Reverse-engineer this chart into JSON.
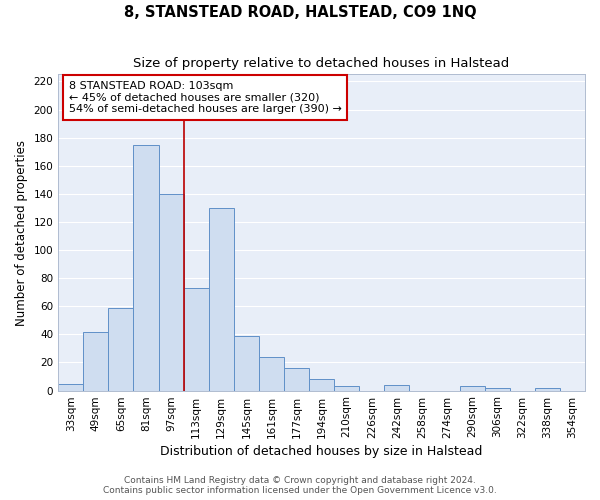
{
  "title": "8, STANSTEAD ROAD, HALSTEAD, CO9 1NQ",
  "subtitle": "Size of property relative to detached houses in Halstead",
  "xlabel": "Distribution of detached houses by size in Halstead",
  "ylabel": "Number of detached properties",
  "bar_labels": [
    "33sqm",
    "49sqm",
    "65sqm",
    "81sqm",
    "97sqm",
    "113sqm",
    "129sqm",
    "145sqm",
    "161sqm",
    "177sqm",
    "194sqm",
    "210sqm",
    "226sqm",
    "242sqm",
    "258sqm",
    "274sqm",
    "290sqm",
    "306sqm",
    "322sqm",
    "338sqm",
    "354sqm"
  ],
  "bar_heights": [
    5,
    42,
    59,
    175,
    140,
    73,
    130,
    39,
    24,
    16,
    8,
    3,
    0,
    4,
    0,
    0,
    3,
    2,
    0,
    2,
    0
  ],
  "bar_color": "#cfddf0",
  "bar_edgecolor": "#6090c8",
  "bar_linewidth": 0.7,
  "vline_x": 4.5,
  "vline_color": "#bb0000",
  "vline_linewidth": 1.2,
  "annotation_box_text": "8 STANSTEAD ROAD: 103sqm\n← 45% of detached houses are smaller (320)\n54% of semi-detached houses are larger (390) →",
  "annotation_box_edgecolor": "#cc0000",
  "annotation_box_facecolor": "white",
  "annotation_fontsize": 8.0,
  "ylim": [
    0,
    225
  ],
  "yticks": [
    0,
    20,
    40,
    60,
    80,
    100,
    120,
    140,
    160,
    180,
    200,
    220
  ],
  "footer_line1": "Contains HM Land Registry data © Crown copyright and database right 2024.",
  "footer_line2": "Contains public sector information licensed under the Open Government Licence v3.0.",
  "bg_color": "#ffffff",
  "plot_bg_color": "#e8eef8",
  "grid_color": "#ffffff",
  "title_fontsize": 10.5,
  "subtitle_fontsize": 9.5,
  "xlabel_fontsize": 9.0,
  "ylabel_fontsize": 8.5,
  "tick_fontsize": 7.5,
  "footer_fontsize": 6.5
}
